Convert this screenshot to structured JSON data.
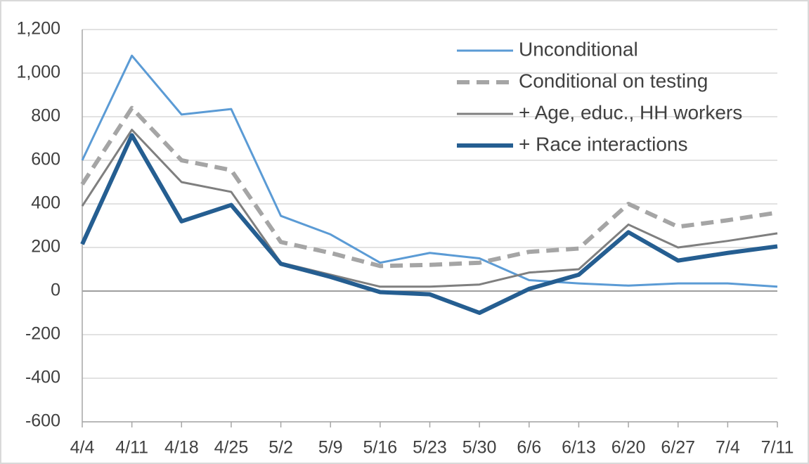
{
  "chart_data": {
    "type": "line",
    "categories": [
      "4/4",
      "4/11",
      "4/18",
      "4/25",
      "5/2",
      "5/9",
      "5/16",
      "5/23",
      "5/30",
      "6/6",
      "6/13",
      "6/20",
      "6/27",
      "7/4",
      "7/11"
    ],
    "series": [
      {
        "name": "Unconditional",
        "color": "#5b9bd5",
        "dash": false,
        "width": 3,
        "values": [
          600,
          1080,
          810,
          835,
          345,
          260,
          130,
          175,
          150,
          50,
          35,
          25,
          35,
          35,
          20
        ]
      },
      {
        "name": "Conditional on testing",
        "color": "#a5a5a5",
        "dash": true,
        "width": 6,
        "values": [
          490,
          840,
          600,
          555,
          225,
          175,
          115,
          120,
          130,
          180,
          195,
          400,
          295,
          325,
          360
        ]
      },
      {
        "name": "+ Age, educ., HH workers",
        "color": "#7f7f7f",
        "dash": false,
        "width": 3,
        "values": [
          390,
          740,
          500,
          455,
          130,
          75,
          20,
          20,
          30,
          85,
          100,
          305,
          200,
          230,
          265
        ]
      },
      {
        "name": "+ Race interactions",
        "color": "#255e91",
        "dash": false,
        "width": 6,
        "values": [
          215,
          715,
          320,
          395,
          125,
          65,
          -5,
          -15,
          -100,
          10,
          75,
          270,
          140,
          175,
          205
        ]
      }
    ],
    "ylim": [
      -600,
      1200
    ],
    "yticks": [
      -600,
      -400,
      -200,
      0,
      200,
      400,
      600,
      800,
      {
        "value": 1000,
        "label": "1,000"
      },
      {
        "value": 1200,
        "label": "1,200"
      }
    ],
    "grid": true,
    "legend": "top-right"
  }
}
